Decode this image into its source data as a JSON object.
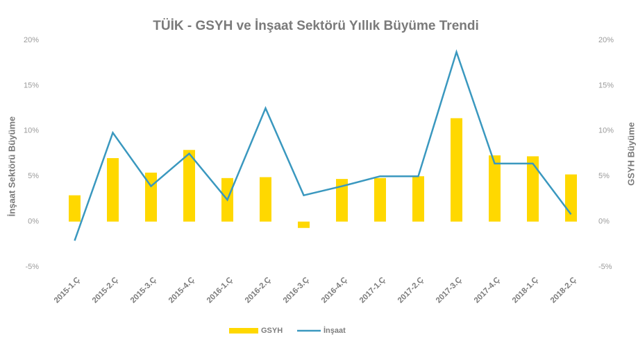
{
  "chart_data": {
    "type": "combo",
    "title": "TÜİK - GSYH ve İnşaat Sektörü Yıllık Büyüme Trendi",
    "ylabel": "İnşaat Sektörü Büyüme",
    "y2label": "GSYH Büyüme",
    "categories": [
      "2015-1.Ç",
      "2015-2.Ç",
      "2015-3.Ç",
      "2015-4.Ç",
      "2016-1.Ç",
      "2016-2.Ç",
      "2016-3.Ç",
      "2016-4.Ç",
      "2017-1.Ç",
      "2017-2.Ç",
      "2017-3.Ç",
      "2017-4.Ç",
      "2018-1.Ç",
      "2018-2.Ç"
    ],
    "series": [
      {
        "name": "GSYH",
        "type": "bar",
        "axis": "y2",
        "color": "#ffd800",
        "values": [
          2.9,
          7.0,
          5.4,
          7.9,
          4.8,
          4.9,
          -0.7,
          4.7,
          4.8,
          5.0,
          11.4,
          7.3,
          7.2,
          5.2
        ]
      },
      {
        "name": "İnşaat",
        "type": "line",
        "color": "#3a98bf",
        "values": [
          -2.1,
          9.8,
          3.9,
          7.5,
          2.4,
          12.5,
          2.9,
          3.9,
          5.0,
          5.0,
          18.7,
          6.4,
          6.4,
          0.8
        ]
      }
    ],
    "ylim": [
      -5,
      20
    ],
    "yticks": [
      {
        "value": -5,
        "label": "-5%"
      },
      {
        "value": 0,
        "label": "0%"
      },
      {
        "value": 5,
        "label": "5%"
      },
      {
        "value": 10,
        "label": "10%"
      },
      {
        "value": 15,
        "label": "15%"
      },
      {
        "value": 20,
        "label": "20%"
      }
    ],
    "y2lim": [
      -5,
      20
    ],
    "y2ticks": [
      {
        "value": -5,
        "label": "-5%"
      },
      {
        "value": 0,
        "label": "0%"
      },
      {
        "value": 5,
        "label": "5%"
      },
      {
        "value": 10,
        "label": "10%"
      },
      {
        "value": 15,
        "label": "15%"
      },
      {
        "value": 20,
        "label": "20%"
      }
    ],
    "grid": false,
    "legend": "bottom"
  }
}
